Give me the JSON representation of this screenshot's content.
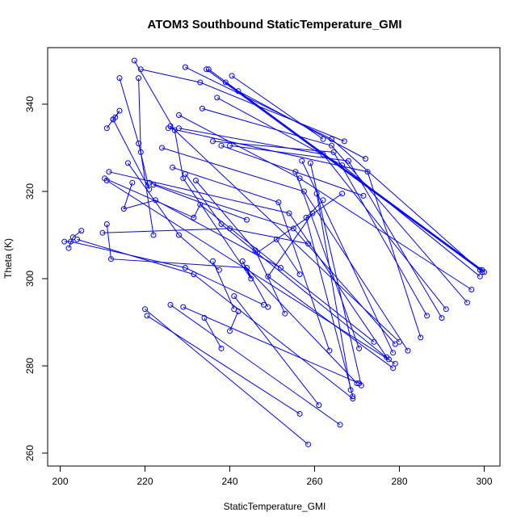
{
  "chart_data": {
    "type": "line",
    "title": "ATOM3 Southbound StaticTemperature_GMI",
    "xlabel": "StaticTemperature_GMI",
    "ylabel": "Theta (K)",
    "xlim": [
      200,
      300
    ],
    "ylim": [
      260,
      350
    ],
    "xticks": [
      200,
      220,
      240,
      260,
      280,
      300
    ],
    "yticks": [
      260,
      280,
      300,
      320,
      340
    ],
    "grid": false,
    "legend": "none",
    "color": "#0000ff",
    "marker": "open-circle",
    "segments": [
      [
        [
          217.5,
          350.0
        ],
        [
          227.0,
          334.0
        ],
        [
          229.0,
          323.0
        ],
        [
          245.0,
          300.0
        ],
        [
          243.0,
          304.0
        ],
        [
          249.0,
          293.5
        ]
      ],
      [
        [
          229.5,
          348.5
        ],
        [
          264.0,
          332.0
        ],
        [
          299.5,
          301.5
        ]
      ],
      [
        [
          234.5,
          348.0
        ],
        [
          299.0,
          302.0
        ]
      ],
      [
        [
          235.0,
          348.0
        ],
        [
          299.5,
          302.0
        ]
      ],
      [
        [
          219.0,
          348.0
        ],
        [
          233.0,
          345.0
        ],
        [
          267.0,
          331.5
        ]
      ],
      [
        [
          240.5,
          346.5
        ],
        [
          262.0,
          332.0
        ]
      ],
      [
        [
          214.0,
          346.0
        ],
        [
          218.5,
          331.0
        ],
        [
          221.0,
          320.5
        ],
        [
          212.5,
          336.5
        ]
      ],
      [
        [
          239.0,
          345.0
        ],
        [
          300.0,
          301.5
        ]
      ],
      [
        [
          218.5,
          346.0
        ],
        [
          219.0,
          329.0
        ],
        [
          222.0,
          310.0
        ]
      ],
      [
        [
          237.0,
          341.5
        ],
        [
          266.5,
          326.0
        ],
        [
          299.0,
          300.5
        ]
      ],
      [
        [
          242.0,
          343.0
        ],
        [
          272.0,
          327.5
        ]
      ],
      [
        [
          211.0,
          334.5
        ],
        [
          212.5,
          336.5
        ],
        [
          214.0,
          338.5
        ],
        [
          213.0,
          337.0
        ]
      ],
      [
        [
          228.0,
          337.5
        ],
        [
          256.5,
          323.0
        ],
        [
          297.0,
          297.5
        ]
      ],
      [
        [
          233.5,
          339.0
        ],
        [
          264.0,
          330.5
        ],
        [
          296.0,
          294.5
        ]
      ],
      [
        [
          226.0,
          335.0
        ],
        [
          280.0,
          285.5
        ]
      ],
      [
        [
          225.5,
          334.5
        ],
        [
          272.5,
          324.5
        ],
        [
          285.0,
          286.5
        ]
      ],
      [
        [
          228.0,
          334.5
        ],
        [
          262.0,
          328.5
        ],
        [
          291.0,
          293.0
        ]
      ],
      [
        [
          224.0,
          330.0
        ],
        [
          257.5,
          320.0
        ],
        [
          282.0,
          283.5
        ]
      ],
      [
        [
          236.0,
          331.5
        ],
        [
          264.5,
          329.0
        ],
        [
          286.5,
          291.5
        ]
      ],
      [
        [
          238.0,
          330.5
        ],
        [
          271.5,
          319.0
        ]
      ],
      [
        [
          240.0,
          330.5
        ],
        [
          268.0,
          327.0
        ],
        [
          290.0,
          291.0
        ]
      ],
      [
        [
          216.0,
          326.5
        ],
        [
          228.0,
          310.0
        ],
        [
          237.5,
          302.0
        ]
      ],
      [
        [
          226.5,
          325.5
        ],
        [
          251.5,
          317.5
        ],
        [
          263.5,
          283.5
        ]
      ],
      [
        [
          210.5,
          323.0
        ],
        [
          231.5,
          314.0
        ],
        [
          233.0,
          317.0
        ],
        [
          274.0,
          285.5
        ]
      ],
      [
        [
          211.0,
          322.5
        ],
        [
          279.0,
          280.5
        ]
      ],
      [
        [
          211.5,
          324.5
        ],
        [
          254.0,
          315.0
        ],
        [
          277.0,
          282.0
        ]
      ],
      [
        [
          221.0,
          322.0
        ],
        [
          255.0,
          311.5
        ],
        [
          279.0,
          285.0
        ]
      ],
      [
        [
          222.0,
          321.5
        ],
        [
          244.0,
          313.5
        ]
      ],
      [
        [
          217.0,
          322.0
        ],
        [
          215.0,
          316.0
        ],
        [
          222.5,
          318.0
        ],
        [
          252.0,
          302.5
        ]
      ],
      [
        [
          229.5,
          324.0
        ],
        [
          238.0,
          312.5
        ],
        [
          277.5,
          281.5
        ]
      ],
      [
        [
          232.0,
          322.5
        ],
        [
          246.0,
          306.5
        ],
        [
          253.0,
          292.0
        ]
      ],
      [
        [
          255.5,
          324.5
        ],
        [
          270.5,
          284.0
        ]
      ],
      [
        [
          257.0,
          327.0
        ],
        [
          278.5,
          283.0
        ]
      ],
      [
        [
          259.0,
          326.5
        ],
        [
          271.0,
          275.5
        ]
      ],
      [
        [
          260.5,
          319.5
        ],
        [
          268.5,
          274.5
        ]
      ],
      [
        [
          262.0,
          318.0
        ],
        [
          258.0,
          314.0
        ],
        [
          269.0,
          273.0
        ]
      ],
      [
        [
          266.5,
          319.5
        ],
        [
          246.5,
          306.0
        ]
      ],
      [
        [
          259.5,
          315.0
        ],
        [
          249.0,
          300.5
        ],
        [
          278.5,
          279.5
        ]
      ],
      [
        [
          210.0,
          310.5
        ],
        [
          240.0,
          311.5
        ],
        [
          258.5,
          308.0
        ]
      ],
      [
        [
          211.0,
          312.5
        ],
        [
          212.0,
          304.5
        ],
        [
          244.0,
          302.5
        ],
        [
          270.0,
          276.0
        ]
      ],
      [
        [
          202.0,
          307.0
        ],
        [
          203.0,
          309.5
        ],
        [
          205.0,
          311.0
        ]
      ],
      [
        [
          201.0,
          308.5
        ],
        [
          202.5,
          308.5
        ],
        [
          229.5,
          302.5
        ],
        [
          248.0,
          294.0
        ]
      ],
      [
        [
          204.0,
          309.0
        ],
        [
          231.5,
          301.0
        ],
        [
          269.0,
          272.5
        ]
      ],
      [
        [
          220.0,
          293.0
        ],
        [
          258.5,
          262.0
        ]
      ],
      [
        [
          220.5,
          291.5
        ],
        [
          256.5,
          269.0
        ]
      ],
      [
        [
          226.0,
          294.0
        ],
        [
          266.0,
          266.5
        ]
      ],
      [
        [
          229.0,
          293.5
        ],
        [
          270.5,
          276.0
        ]
      ],
      [
        [
          234.0,
          291.0
        ],
        [
          238.0,
          284.0
        ]
      ],
      [
        [
          236.0,
          304.0
        ],
        [
          241.0,
          293.0
        ]
      ],
      [
        [
          240.0,
          288.0
        ],
        [
          242.0,
          292.5
        ]
      ],
      [
        [
          241.0,
          296.0
        ],
        [
          261.0,
          271.0
        ]
      ],
      [
        [
          251.0,
          309.0
        ],
        [
          256.5,
          301.0
        ]
      ]
    ]
  }
}
